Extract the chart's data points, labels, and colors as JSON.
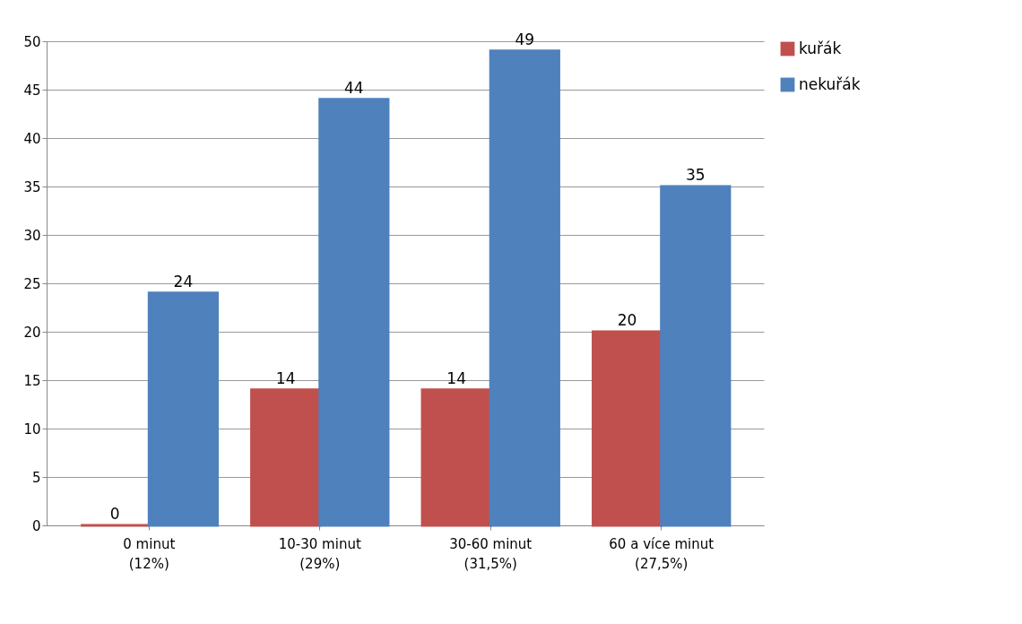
{
  "chart_data": {
    "type": "bar",
    "categories": [
      "0 minut\n(12%)",
      "10-30 minut\n(29%)",
      "30-60 minut\n(31,5%)",
      "60 a více minut\n(27,5%)"
    ],
    "series": [
      {
        "name": "kuřák",
        "color": "#c0504d",
        "values": [
          0,
          14,
          14,
          20
        ]
      },
      {
        "name": "nekuřák",
        "color": "#4f81bd",
        "values": [
          24,
          44,
          49,
          35
        ]
      }
    ],
    "ylim": [
      0,
      50
    ],
    "yticks": [
      0,
      5,
      10,
      15,
      20,
      25,
      30,
      35,
      40,
      45,
      50
    ],
    "grid": "y",
    "legend": "right",
    "data_labels": true
  }
}
